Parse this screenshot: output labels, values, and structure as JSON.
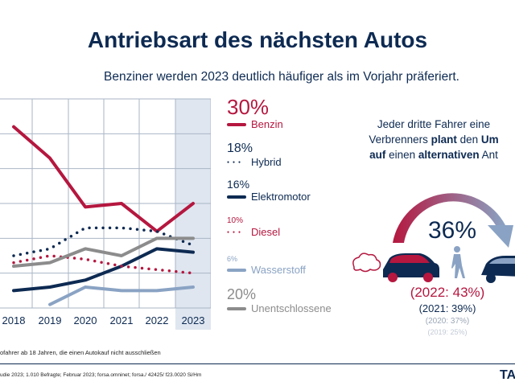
{
  "title": "Antriebsart des nächsten Autos",
  "subtitle": "Benziner werden 2023 deutlich häufiger als im Vorjahr präferiert.",
  "chart_data": {
    "type": "line",
    "x": [
      "2018",
      "2019",
      "2020",
      "2021",
      "2022",
      "2023"
    ],
    "ylim": [
      0,
      60
    ],
    "grid": true,
    "highlighted_category": "2023",
    "legend_placement": "right",
    "series": [
      {
        "name": "Benzin",
        "label": "30%",
        "style": "solid",
        "color": "#b5173f",
        "values": [
          52,
          43,
          29,
          30,
          22,
          30
        ]
      },
      {
        "name": "Hybrid",
        "label": "18%",
        "style": "dotted",
        "color": "#0d2a52",
        "values": [
          15,
          17,
          23,
          23,
          22,
          18
        ]
      },
      {
        "name": "Elektromotor",
        "label": "16%",
        "style": "solid",
        "color": "#0d2a52",
        "values": [
          5,
          6,
          8,
          12,
          17,
          16
        ]
      },
      {
        "name": "Diesel",
        "label": "10%",
        "style": "dotted",
        "color": "#b5173f",
        "values": [
          13,
          15,
          14,
          12,
          11,
          10
        ]
      },
      {
        "name": "Wasserstoff",
        "label": "6%",
        "style": "solid",
        "color": "#8aa3c4",
        "values": [
          null,
          1,
          6,
          5,
          5,
          6
        ]
      },
      {
        "name": "Unentschlossene",
        "label": "20%",
        "style": "solid",
        "color": "#8c8c8c",
        "values": [
          12,
          13,
          17,
          15,
          20,
          20
        ]
      }
    ]
  },
  "right_panel": {
    "heading_lines": [
      [
        "Jeder dritte Fahrer eine"
      ],
      [
        "Verbrenners ",
        "plant",
        " den ",
        "Um"
      ],
      [
        "auf",
        " einen ",
        "alternativen",
        " Ant"
      ]
    ],
    "main_value": "36%",
    "history": [
      "(2022: 43%)",
      "(2021: 39%)",
      "(2020: 37%)",
      "(2019: 25%)"
    ],
    "colors": {
      "red": "#b5173f",
      "navy": "#0d2a52",
      "light": "#8aa3c4"
    }
  },
  "footnote": "ofahrer ab 18 Jahren, die einen Autokauf nicht ausschließen",
  "source": "udie 2023; 1.010 Befragte; Februar 2023; forsa.omninet; forsa./ 42425/ f23.0020 Si/Hm",
  "logo": "TA"
}
